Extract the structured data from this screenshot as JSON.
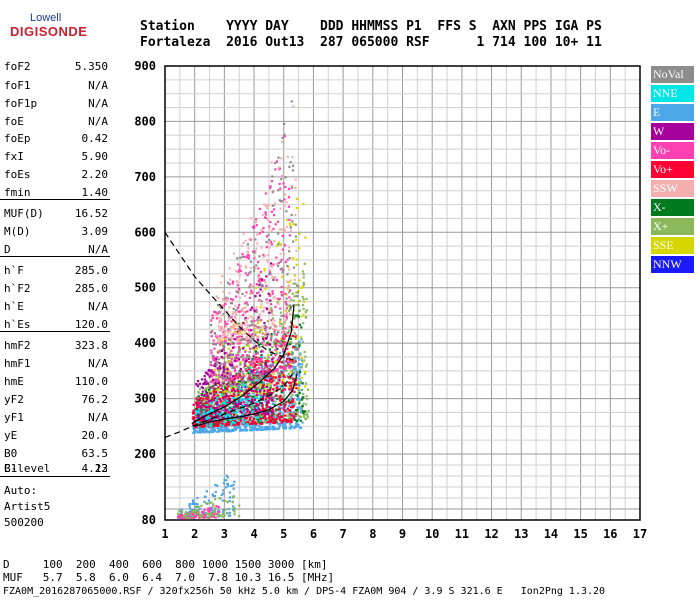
{
  "logo": {
    "top": "Lowell",
    "main": "DIGISONDE"
  },
  "header": {
    "line1": "Station    YYYY DAY    DDD HHMMSS P1  FFS S  AXN PPS IGA PS",
    "line2": "Fortaleza  2016 Out13  287 065000 RSF      1 714 100 10+ 11"
  },
  "params": [
    {
      "label": "foF2",
      "value": "5.350"
    },
    {
      "label": "foF1",
      "value": "N/A"
    },
    {
      "label": "foF1p",
      "value": "N/A"
    },
    {
      "label": "foE",
      "value": "N/A"
    },
    {
      "label": "foEp",
      "value": "0.42"
    },
    {
      "label": "fxI",
      "value": "5.90"
    },
    {
      "label": "foEs",
      "value": "2.20"
    },
    {
      "label": "fmin",
      "value": "1.40"
    },
    {
      "label": "MUF(D)",
      "value": "16.52"
    },
    {
      "label": "M(D)",
      "value": "3.09"
    },
    {
      "label": "D",
      "value": "N/A"
    },
    {
      "label": "h`F",
      "value": "285.0"
    },
    {
      "label": "h`F2",
      "value": "285.0"
    },
    {
      "label": "h`E",
      "value": "N/A"
    },
    {
      "label": "h`Es",
      "value": "120.0"
    },
    {
      "label": "hmF2",
      "value": "323.8"
    },
    {
      "label": "hmF1",
      "value": "N/A"
    },
    {
      "label": "hmE",
      "value": "110.0"
    },
    {
      "label": "yF2",
      "value": "76.2"
    },
    {
      "label": "yF1",
      "value": "N/A"
    },
    {
      "label": "yE",
      "value": "20.0"
    },
    {
      "label": "B0",
      "value": "63.5"
    },
    {
      "label": "B1",
      "value": "4.13"
    },
    {
      "label": "C-level",
      "value": "22"
    }
  ],
  "auto": {
    "line1": "Auto:",
    "line2": "Artist5",
    "line3": "500200"
  },
  "legend": [
    {
      "label": "NoVal",
      "color": "#8c8c8c"
    },
    {
      "label": "NNE",
      "color": "#00e6e6"
    },
    {
      "label": "E",
      "color": "#4da6e8"
    },
    {
      "label": "W",
      "color": "#a6009c"
    },
    {
      "label": "Vo-",
      "color": "#ff40b0"
    },
    {
      "label": "Vo+",
      "color": "#ff0033"
    },
    {
      "label": "SSW",
      "color": "#f4b0b0"
    },
    {
      "label": "X-",
      "color": "#007a1f"
    },
    {
      "label": "X+",
      "color": "#8cb85c"
    },
    {
      "label": "SSE",
      "color": "#d6d600"
    },
    {
      "label": "NNW",
      "color": "#1a1aff"
    }
  ],
  "footer": {
    "line1": "D     100  200  400  600  800 1000 1500 3000 [km]",
    "line2": "MUF   5.7  5.8  6.0  6.4  7.0  7.8 10.3 16.5 [MHz]",
    "line3": "FZA0M_2016287065000.RSF / 320fx256h 50 kHz 5.0 km / DPS-4 FZA0M 904 / 3.9 S 321.6 E   Ion2Png 1.3.20"
  },
  "chart_data": {
    "type": "scatter",
    "xlim": [
      1,
      17
    ],
    "ylim": [
      80,
      900
    ],
    "xticks": [
      1,
      2,
      3,
      4,
      5,
      6,
      7,
      8,
      9,
      10,
      11,
      12,
      13,
      14,
      15,
      16,
      17
    ],
    "yticks": [
      80,
      200,
      300,
      400,
      500,
      600,
      700,
      800,
      900
    ],
    "grid": true,
    "legend_position": "right",
    "point_clusters": [
      {
        "series": "E",
        "color": "#4da6e8",
        "x": [
          1.9,
          5.6
        ],
        "y": [
          240,
          420
        ],
        "density": 900
      },
      {
        "series": "X+",
        "color": "#8cb85c",
        "x": [
          2.0,
          5.8
        ],
        "y": [
          250,
          560
        ],
        "density": 500
      },
      {
        "series": "X-",
        "color": "#007a1f",
        "x": [
          2.0,
          5.7
        ],
        "y": [
          250,
          500
        ],
        "density": 260
      },
      {
        "series": "SSE",
        "color": "#d6d600",
        "x": [
          2.5,
          5.7
        ],
        "y": [
          300,
          700
        ],
        "density": 220
      },
      {
        "series": "Vo+",
        "color": "#ff0033",
        "x": [
          1.9,
          5.4
        ],
        "y": [
          250,
          450
        ],
        "density": 600
      },
      {
        "series": "Vo-",
        "color": "#ff40b0",
        "x": [
          2.5,
          5.2
        ],
        "y": [
          330,
          820
        ],
        "density": 420
      },
      {
        "series": "W",
        "color": "#a6009c",
        "x": [
          2.0,
          4.6
        ],
        "y": [
          260,
          560
        ],
        "density": 300
      },
      {
        "series": "SSW",
        "color": "#f4b0b0",
        "x": [
          2.7,
          5.4
        ],
        "y": [
          400,
          870
        ],
        "density": 260
      },
      {
        "series": "NoVal",
        "color": "#8c8c8c",
        "x": [
          2.5,
          5.5
        ],
        "y": [
          320,
          900
        ],
        "density": 220
      },
      {
        "series": "NNE",
        "color": "#00e6e6",
        "x": [
          2.0,
          4.2
        ],
        "y": [
          250,
          380
        ],
        "density": 120
      },
      {
        "series": "E",
        "color": "#4da6e8",
        "x": [
          1.4,
          3.3
        ],
        "y": [
          85,
          175
        ],
        "density": 120
      },
      {
        "series": "Vo-",
        "color": "#ff40b0",
        "x": [
          1.4,
          2.8
        ],
        "y": [
          85,
          110
        ],
        "density": 90
      },
      {
        "series": "X+",
        "color": "#8cb85c",
        "x": [
          1.4,
          3.5
        ],
        "y": [
          85,
          140
        ],
        "density": 70
      }
    ],
    "curves": [
      {
        "name": "dashed",
        "style": "dashed",
        "points": [
          [
            1.0,
            600
          ],
          [
            1.5,
            560
          ],
          [
            2.0,
            520
          ],
          [
            2.5,
            490
          ],
          [
            3.0,
            460
          ],
          [
            3.5,
            430
          ],
          [
            4.0,
            405
          ],
          [
            4.5,
            385
          ],
          [
            5.0,
            375
          ],
          [
            5.3,
            370
          ]
        ]
      },
      {
        "name": "dashed-low",
        "style": "dashed",
        "points": [
          [
            1.0,
            230
          ],
          [
            1.5,
            240
          ],
          [
            2.0,
            252
          ],
          [
            2.5,
            262
          ],
          [
            3.0,
            272
          ],
          [
            3.5,
            282
          ],
          [
            4.0,
            292
          ],
          [
            4.5,
            305
          ],
          [
            5.0,
            322
          ],
          [
            5.3,
            345
          ]
        ]
      },
      {
        "name": "trace-o",
        "style": "solid",
        "points": [
          [
            1.9,
            255
          ],
          [
            2.4,
            270
          ],
          [
            3.0,
            285
          ],
          [
            3.6,
            305
          ],
          [
            4.2,
            330
          ],
          [
            4.7,
            355
          ],
          [
            5.0,
            380
          ],
          [
            5.25,
            420
          ],
          [
            5.35,
            470
          ]
        ]
      },
      {
        "name": "trace-x",
        "style": "solid",
        "points": [
          [
            2.0,
            250
          ],
          [
            2.5,
            258
          ],
          [
            3.0,
            263
          ],
          [
            3.5,
            267
          ],
          [
            4.0,
            272
          ],
          [
            4.5,
            280
          ],
          [
            5.0,
            295
          ],
          [
            5.3,
            315
          ],
          [
            5.45,
            345
          ]
        ]
      }
    ]
  }
}
